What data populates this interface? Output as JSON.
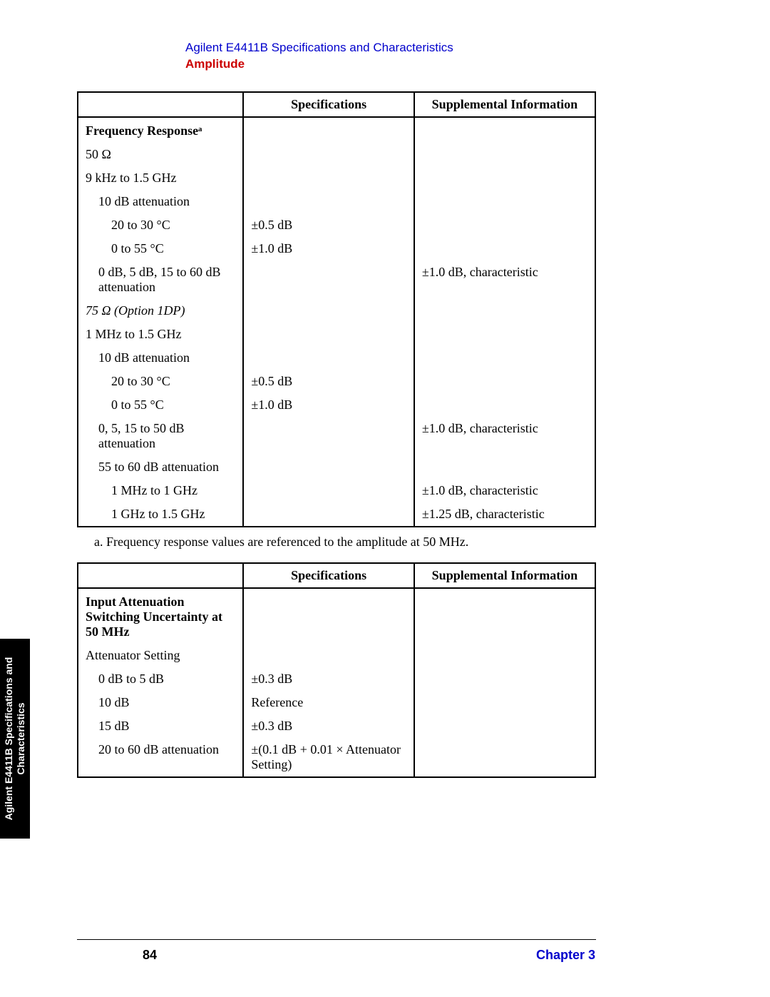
{
  "header": {
    "line1": "Agilent E4411B Specifications and Characteristics",
    "line2": "Amplitude"
  },
  "table1": {
    "cols": {
      "label": "",
      "spec": "Specifications",
      "supp": "Supplemental Information"
    },
    "rows": [
      {
        "label": "Frequency Responseᵃ",
        "spec": "",
        "supp": "",
        "bold": true
      },
      {
        "label": "50 Ω",
        "spec": "",
        "supp": ""
      },
      {
        "label": "9 kHz to 1.5 GHz",
        "spec": "",
        "supp": ""
      },
      {
        "label": "10 dB attenuation",
        "spec": "",
        "supp": "",
        "ind": 1
      },
      {
        "label": "20 to 30 °C",
        "spec": "±0.5 dB",
        "supp": "",
        "ind": 2
      },
      {
        "label": "0 to 55 °C",
        "spec": "±1.0 dB",
        "supp": "",
        "ind": 2
      },
      {
        "label": "0 dB, 5 dB, 15 to 60 dB attenuation",
        "spec": "",
        "supp": "±1.0 dB, characteristic",
        "ind": 1
      },
      {
        "label": "75 Ω (Option 1DP)",
        "spec": "",
        "supp": "",
        "italic": true
      },
      {
        "label": "1 MHz to 1.5 GHz",
        "spec": "",
        "supp": ""
      },
      {
        "label": "10 dB attenuation",
        "spec": "",
        "supp": "",
        "ind": 1
      },
      {
        "label": "20 to 30 °C",
        "spec": "±0.5 dB",
        "supp": "",
        "ind": 2
      },
      {
        "label": "0 to 55 °C",
        "spec": "±1.0 dB",
        "supp": "",
        "ind": 2
      },
      {
        "label": "0, 5, 15 to 50 dB attenuation",
        "spec": "",
        "supp": "±1.0 dB, characteristic",
        "ind": 1
      },
      {
        "label": "55 to 60 dB attenuation",
        "spec": "",
        "supp": "",
        "ind": 1
      },
      {
        "label": "1 MHz to 1 GHz",
        "spec": "",
        "supp": "±1.0 dB, characteristic",
        "ind": 2
      },
      {
        "label": "1 GHz to 1.5 GHz",
        "spec": "",
        "supp": "±1.25 dB, characteristic",
        "ind": 2,
        "last": true
      }
    ]
  },
  "footnote": "a. Frequency response values are referenced to the amplitude at 50 MHz.",
  "table2": {
    "cols": {
      "label": "",
      "spec": "Specifications",
      "supp": "Supplemental Information"
    },
    "rows": [
      {
        "label": "Input Attenuation Switching Uncertainty at 50 MHz",
        "spec": "",
        "supp": "",
        "bold": true
      },
      {
        "label": "Attenuator Setting",
        "spec": "",
        "supp": ""
      },
      {
        "label": "0 dB to 5 dB",
        "spec": "±0.3 dB",
        "supp": "",
        "ind": 1
      },
      {
        "label": "10 dB",
        "spec": "Reference",
        "supp": "",
        "ind": 1
      },
      {
        "label": "15 dB",
        "spec": "±0.3 dB",
        "supp": "",
        "ind": 1
      },
      {
        "label": "20 to 60 dB attenuation",
        "spec": "±(0.1 dB + 0.01 × Attenuator Setting)",
        "supp": "",
        "ind": 1,
        "last": true
      }
    ]
  },
  "sidetab": {
    "line1": "Agilent E4411B Specifications and",
    "line2": "Characteristics"
  },
  "footer": {
    "page": "84",
    "chapter": "Chapter 3"
  },
  "colors": {
    "link": "#0000cc",
    "accent": "#cc0000",
    "text": "#000000",
    "bg": "#ffffff"
  },
  "col_widths": {
    "label": "32%",
    "spec": "33%",
    "supp": "35%"
  }
}
